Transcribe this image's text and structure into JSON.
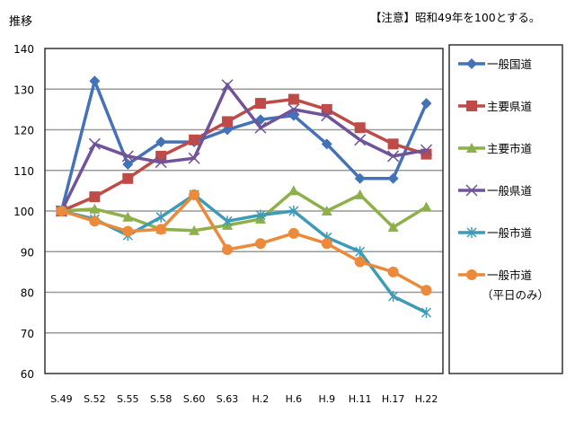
{
  "chart_data": {
    "type": "line",
    "ylabel": "推移",
    "note": "【注意】昭和49年を100とする。",
    "ylim": [
      60,
      140
    ],
    "yticks": [
      60,
      70,
      80,
      90,
      100,
      110,
      120,
      130,
      140
    ],
    "grid": true,
    "legend_placement": "right",
    "categories": [
      "S.49",
      "S.52",
      "S.55",
      "S.58",
      "S.60",
      "S.63",
      "H.2",
      "H.6",
      "H.9",
      "H.11",
      "H.17",
      "H.22"
    ],
    "series": [
      {
        "name": "一般国道",
        "color": "#4372B8",
        "marker": "diamond",
        "values": [
          100,
          132,
          111.5,
          117,
          117,
          120,
          122.5,
          123.5,
          116.5,
          108,
          108,
          126.5
        ]
      },
      {
        "name": "主要県道",
        "color": "#BE4B48",
        "marker": "square",
        "values": [
          100,
          103.5,
          108,
          113.5,
          117.5,
          122,
          126.5,
          127.5,
          125,
          120.5,
          116.5,
          114
        ]
      },
      {
        "name": "主要市道",
        "color": "#8DB04A",
        "marker": "triangle",
        "values": [
          100,
          100.5,
          98.5,
          95.5,
          95.2,
          96.5,
          98,
          105,
          100,
          104,
          96,
          101
        ]
      },
      {
        "name": "一般県道",
        "color": "#71539A",
        "marker": "x",
        "values": [
          100,
          116.5,
          113.5,
          112,
          113,
          131,
          120.5,
          125,
          123.5,
          117.5,
          113.5,
          115
        ]
      },
      {
        "name": "一般市道",
        "color": "#3D9BB5",
        "marker": "star",
        "values": [
          100,
          98,
          94,
          98.5,
          104,
          97.5,
          99,
          100,
          93.5,
          90,
          79,
          75
        ]
      },
      {
        "name": "一般市道",
        "name2": "（平日のみ）",
        "color": "#EB8A3A",
        "marker": "circle",
        "values": [
          100,
          97.5,
          95,
          95.5,
          104,
          90.5,
          92,
          94.5,
          92,
          87.5,
          85,
          80.5
        ]
      }
    ]
  }
}
